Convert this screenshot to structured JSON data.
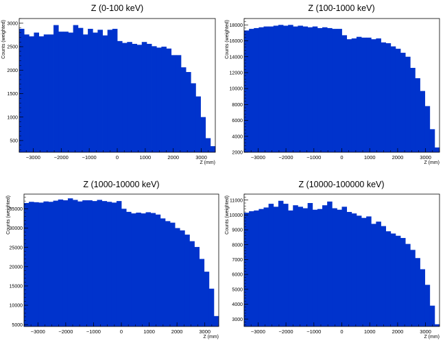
{
  "chart_data": [
    {
      "type": "bar",
      "title": "Z (0-100 keV)",
      "xlabel": "Z (mm)",
      "ylabel": "Counts (weighted)",
      "xlim": [
        -3500,
        3500
      ],
      "ylim": [
        250,
        3100
      ],
      "x_ticks": [
        -3000,
        -2000,
        -1000,
        0,
        1000,
        2000,
        3000
      ],
      "y_ticks": [
        500,
        1000,
        1500,
        2000,
        2500,
        3000
      ],
      "bin_edges": [
        -3500,
        -3325,
        -3150,
        -2975,
        -2800,
        -2625,
        -2450,
        -2275,
        -2100,
        -1925,
        -1750,
        -1575,
        -1400,
        -1225,
        -1050,
        -875,
        -700,
        -525,
        -350,
        -175,
        0,
        175,
        350,
        525,
        700,
        875,
        1050,
        1225,
        1400,
        1575,
        1750,
        1925,
        2100,
        2275,
        2450,
        2625,
        2800,
        2975,
        3150,
        3325,
        3500
      ],
      "values": [
        2880,
        2760,
        2720,
        2800,
        2720,
        2760,
        2760,
        2960,
        2820,
        2820,
        2800,
        2960,
        2900,
        2760,
        2880,
        2800,
        2860,
        2740,
        2860,
        2880,
        2620,
        2580,
        2600,
        2560,
        2540,
        2600,
        2560,
        2510,
        2480,
        2500,
        2460,
        2320,
        2320,
        2060,
        1960,
        1720,
        1440,
        1000,
        550,
        380
      ],
      "fill_color": "#0033cc",
      "stroke_color": "#0022aa"
    },
    {
      "type": "bar",
      "title": "Z (100-1000 keV)",
      "xlabel": "Z (mm)",
      "ylabel": "Counts (weighted)",
      "xlim": [
        -3500,
        3500
      ],
      "ylim": [
        2000,
        18800
      ],
      "x_ticks": [
        -3000,
        -2000,
        -1000,
        0,
        1000,
        2000,
        3000
      ],
      "y_ticks": [
        2000,
        4000,
        6000,
        8000,
        10000,
        12000,
        14000,
        16000,
        18000
      ],
      "bin_edges": [
        -3500,
        -3325,
        -3150,
        -2975,
        -2800,
        -2625,
        -2450,
        -2275,
        -2100,
        -1925,
        -1750,
        -1575,
        -1400,
        -1225,
        -1050,
        -875,
        -700,
        -525,
        -350,
        -175,
        0,
        175,
        350,
        525,
        700,
        875,
        1050,
        1225,
        1400,
        1575,
        1750,
        1925,
        2100,
        2275,
        2450,
        2625,
        2800,
        2975,
        3150,
        3325,
        3500
      ],
      "values": [
        17300,
        17500,
        17600,
        17700,
        17800,
        17800,
        17900,
        18000,
        17900,
        18000,
        17800,
        17900,
        17800,
        17700,
        17800,
        17600,
        17700,
        17600,
        17500,
        17500,
        16700,
        16200,
        16300,
        16500,
        16400,
        16400,
        16200,
        16300,
        15800,
        15700,
        15300,
        15000,
        14500,
        14000,
        12600,
        11300,
        9700,
        7800,
        4900,
        2600
      ],
      "fill_color": "#0033cc",
      "stroke_color": "#0022aa"
    },
    {
      "type": "bar",
      "title": "Z (1000-10000 keV)",
      "xlabel": "Z (mm)",
      "ylabel": "Counts (weighted)",
      "xlim": [
        -3500,
        3500
      ],
      "ylim": [
        4500,
        38800
      ],
      "x_ticks": [
        -3000,
        -2000,
        -1000,
        0,
        1000,
        2000,
        3000
      ],
      "y_ticks": [
        5000,
        10000,
        15000,
        20000,
        25000,
        30000,
        35000
      ],
      "bin_edges": [
        -3500,
        -3325,
        -3150,
        -2975,
        -2800,
        -2625,
        -2450,
        -2275,
        -2100,
        -1925,
        -1750,
        -1575,
        -1400,
        -1225,
        -1050,
        -875,
        -700,
        -525,
        -350,
        -175,
        0,
        175,
        350,
        525,
        700,
        875,
        1050,
        1225,
        1400,
        1575,
        1750,
        1925,
        2100,
        2275,
        2450,
        2625,
        2800,
        2975,
        3150,
        3325,
        3500
      ],
      "values": [
        36500,
        36800,
        36700,
        36600,
        36900,
        36800,
        37100,
        37400,
        37200,
        37700,
        37300,
        36900,
        37200,
        37200,
        37000,
        37300,
        37000,
        36800,
        36600,
        37000,
        35000,
        34200,
        33800,
        34000,
        33800,
        34100,
        33900,
        33500,
        32500,
        31800,
        31400,
        30000,
        29400,
        28300,
        26600,
        25100,
        22000,
        18700,
        14300,
        7200
      ],
      "fill_color": "#0033cc",
      "stroke_color": "#0022aa"
    },
    {
      "type": "bar",
      "title": "Z (10000-100000 keV)",
      "xlabel": "Z (mm)",
      "ylabel": "Counts (weighted)",
      "xlim": [
        -3500,
        3500
      ],
      "ylim": [
        2500,
        11400
      ],
      "x_ticks": [
        -3000,
        -2000,
        -1000,
        0,
        1000,
        2000,
        3000
      ],
      "y_ticks": [
        3000,
        4000,
        5000,
        6000,
        7000,
        8000,
        9000,
        10000,
        11000
      ],
      "bin_edges": [
        -3500,
        -3325,
        -3150,
        -2975,
        -2800,
        -2625,
        -2450,
        -2275,
        -2100,
        -1925,
        -1750,
        -1575,
        -1400,
        -1225,
        -1050,
        -875,
        -700,
        -525,
        -350,
        -175,
        0,
        175,
        350,
        525,
        700,
        875,
        1050,
        1225,
        1400,
        1575,
        1750,
        1925,
        2100,
        2275,
        2450,
        2625,
        2800,
        2975,
        3150,
        3325,
        3500
      ],
      "values": [
        10150,
        10250,
        10300,
        10400,
        10500,
        10750,
        10550,
        10950,
        10750,
        10300,
        10650,
        10550,
        10450,
        10800,
        10350,
        10400,
        10650,
        10900,
        10450,
        10350,
        10550,
        10200,
        10100,
        9950,
        9800,
        9900,
        9400,
        9550,
        9250,
        8900,
        8750,
        8600,
        8450,
        8050,
        7650,
        7100,
        6350,
        5300,
        3900,
        2650
      ],
      "fill_color": "#0033cc",
      "stroke_color": "#0022aa"
    }
  ]
}
